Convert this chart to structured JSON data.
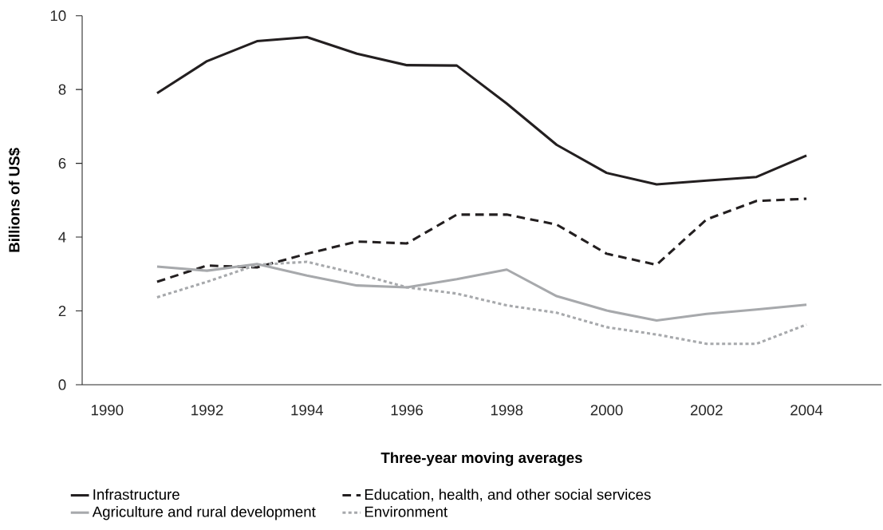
{
  "chart_data": {
    "type": "line",
    "xlabel": "Three-year moving averages",
    "ylabel": "Billions of US$",
    "categories": [
      "1990",
      null,
      "1992",
      null,
      "1994",
      null,
      "1996",
      null,
      "1998",
      null,
      "2000",
      null,
      "2002",
      null,
      "2004",
      null
    ],
    "series": [
      {
        "name": "Infrastructure",
        "color": "#231f20",
        "line_style": "solid",
        "values": [
          null,
          7.9,
          8.77,
          9.31,
          9.42,
          8.97,
          8.66,
          8.65,
          7.62,
          6.5,
          5.74,
          5.43,
          5.53,
          5.63,
          6.21,
          null
        ]
      },
      {
        "name": "Education, health, and other social services",
        "color": "#231f20",
        "line_style": "dashed",
        "values": [
          null,
          2.79,
          3.23,
          3.18,
          3.55,
          3.88,
          3.83,
          4.61,
          4.61,
          4.34,
          3.55,
          3.25,
          4.48,
          4.98,
          5.04,
          null
        ]
      },
      {
        "name": "Agriculture and rural development",
        "color": "#a7a9ac",
        "line_style": "solid",
        "values": [
          null,
          3.2,
          3.09,
          3.27,
          2.96,
          2.69,
          2.64,
          2.86,
          3.12,
          2.4,
          2.01,
          1.74,
          1.92,
          2.04,
          2.17,
          null
        ]
      },
      {
        "name": "Environment",
        "color": "#a7a9ac",
        "line_style": "dotted",
        "values": [
          null,
          2.37,
          2.79,
          3.25,
          3.33,
          3.01,
          2.64,
          2.47,
          2.15,
          1.95,
          1.56,
          1.36,
          1.11,
          1.11,
          1.63,
          null
        ]
      }
    ],
    "ylim": [
      0,
      10
    ],
    "yticks": [
      0,
      2,
      4,
      6,
      8,
      10
    ],
    "grid": false,
    "legend": "bottom",
    "marker": "none"
  }
}
